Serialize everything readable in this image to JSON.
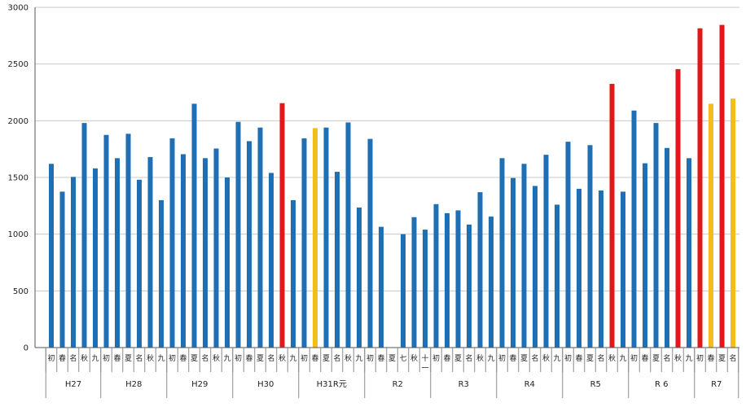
{
  "chart_data": {
    "type": "bar",
    "ylim": [
      0,
      3000
    ],
    "yticks": [
      0,
      500,
      1000,
      1500,
      2000,
      2500,
      3000
    ],
    "grid": true,
    "colors": {
      "blue": "#1f6fb4",
      "red": "#e3161b",
      "gold": "#f2bd1d"
    },
    "groups": [
      {
        "label": "H27",
        "bars": [
          {
            "cat": "初",
            "value": 1620,
            "color": "blue"
          },
          {
            "cat": "春",
            "value": 1375,
            "color": "blue"
          },
          {
            "cat": "名",
            "value": 1505,
            "color": "blue"
          },
          {
            "cat": "秋",
            "value": 1980,
            "color": "blue"
          },
          {
            "cat": "九",
            "value": 1580,
            "color": "blue"
          }
        ]
      },
      {
        "label": "H28",
        "bars": [
          {
            "cat": "初",
            "value": 1875,
            "color": "blue"
          },
          {
            "cat": "春",
            "value": 1670,
            "color": "blue"
          },
          {
            "cat": "夏",
            "value": 1885,
            "color": "blue"
          },
          {
            "cat": "名",
            "value": 1480,
            "color": "blue"
          },
          {
            "cat": "秋",
            "value": 1680,
            "color": "blue"
          },
          {
            "cat": "九",
            "value": 1300,
            "color": "blue"
          }
        ]
      },
      {
        "label": "H29",
        "bars": [
          {
            "cat": "初",
            "value": 1845,
            "color": "blue"
          },
          {
            "cat": "春",
            "value": 1705,
            "color": "blue"
          },
          {
            "cat": "夏",
            "value": 2150,
            "color": "blue"
          },
          {
            "cat": "名",
            "value": 1670,
            "color": "blue"
          },
          {
            "cat": "秋",
            "value": 1755,
            "color": "blue"
          },
          {
            "cat": "九",
            "value": 1500,
            "color": "blue"
          }
        ]
      },
      {
        "label": "H30",
        "bars": [
          {
            "cat": "初",
            "value": 1990,
            "color": "blue"
          },
          {
            "cat": "春",
            "value": 1820,
            "color": "blue"
          },
          {
            "cat": "夏",
            "value": 1940,
            "color": "blue"
          },
          {
            "cat": "名",
            "value": 1540,
            "color": "blue"
          },
          {
            "cat": "秋",
            "value": 2155,
            "color": "red"
          },
          {
            "cat": "九",
            "value": 1300,
            "color": "blue"
          }
        ]
      },
      {
        "label": "H31R元",
        "bars": [
          {
            "cat": "初",
            "value": 1845,
            "color": "blue"
          },
          {
            "cat": "春",
            "value": 1935,
            "color": "gold"
          },
          {
            "cat": "夏",
            "value": 1940,
            "color": "blue"
          },
          {
            "cat": "名",
            "value": 1550,
            "color": "blue"
          },
          {
            "cat": "秋",
            "value": 1985,
            "color": "blue"
          },
          {
            "cat": "九",
            "value": 1235,
            "color": "blue"
          }
        ]
      },
      {
        "label": "R2",
        "bars": [
          {
            "cat": "初",
            "value": 1840,
            "color": "blue"
          },
          {
            "cat": "春",
            "value": 1065,
            "color": "blue"
          },
          {
            "cat": "夏",
            "value": null,
            "color": "blue"
          },
          {
            "cat": "七",
            "value": 1000,
            "color": "blue"
          },
          {
            "cat": "秋",
            "value": 1150,
            "color": "blue"
          },
          {
            "cat": "十一",
            "value": 1040,
            "color": "blue"
          }
        ]
      },
      {
        "label": "R3",
        "bars": [
          {
            "cat": "初",
            "value": 1265,
            "color": "blue"
          },
          {
            "cat": "春",
            "value": 1185,
            "color": "blue"
          },
          {
            "cat": "夏",
            "value": 1210,
            "color": "blue"
          },
          {
            "cat": "名",
            "value": 1085,
            "color": "blue"
          },
          {
            "cat": "秋",
            "value": 1370,
            "color": "blue"
          },
          {
            "cat": "九",
            "value": 1155,
            "color": "blue"
          }
        ]
      },
      {
        "label": "R4",
        "bars": [
          {
            "cat": "初",
            "value": 1670,
            "color": "blue"
          },
          {
            "cat": "春",
            "value": 1495,
            "color": "blue"
          },
          {
            "cat": "夏",
            "value": 1620,
            "color": "blue"
          },
          {
            "cat": "名",
            "value": 1425,
            "color": "blue"
          },
          {
            "cat": "秋",
            "value": 1700,
            "color": "blue"
          },
          {
            "cat": "九",
            "value": 1260,
            "color": "blue"
          }
        ]
      },
      {
        "label": "R5",
        "bars": [
          {
            "cat": "初",
            "value": 1815,
            "color": "blue"
          },
          {
            "cat": "春",
            "value": 1400,
            "color": "blue"
          },
          {
            "cat": "夏",
            "value": 1785,
            "color": "blue"
          },
          {
            "cat": "名",
            "value": 1385,
            "color": "blue"
          },
          {
            "cat": "秋",
            "value": 2325,
            "color": "red"
          },
          {
            "cat": "九",
            "value": 1375,
            "color": "blue"
          }
        ]
      },
      {
        "label": "R 6",
        "bars": [
          {
            "cat": "初",
            "value": 2090,
            "color": "blue"
          },
          {
            "cat": "春",
            "value": 1625,
            "color": "blue"
          },
          {
            "cat": "夏",
            "value": 1980,
            "color": "blue"
          },
          {
            "cat": "名",
            "value": 1760,
            "color": "blue"
          },
          {
            "cat": "秋",
            "value": 2455,
            "color": "red"
          },
          {
            "cat": "九",
            "value": 1670,
            "color": "blue"
          }
        ]
      },
      {
        "label": "R7",
        "bars": [
          {
            "cat": "初",
            "value": 2815,
            "color": "red"
          },
          {
            "cat": "春",
            "value": 2150,
            "color": "gold"
          },
          {
            "cat": "夏",
            "value": 2845,
            "color": "red"
          },
          {
            "cat": "名",
            "value": 2195,
            "color": "gold"
          }
        ]
      }
    ]
  }
}
